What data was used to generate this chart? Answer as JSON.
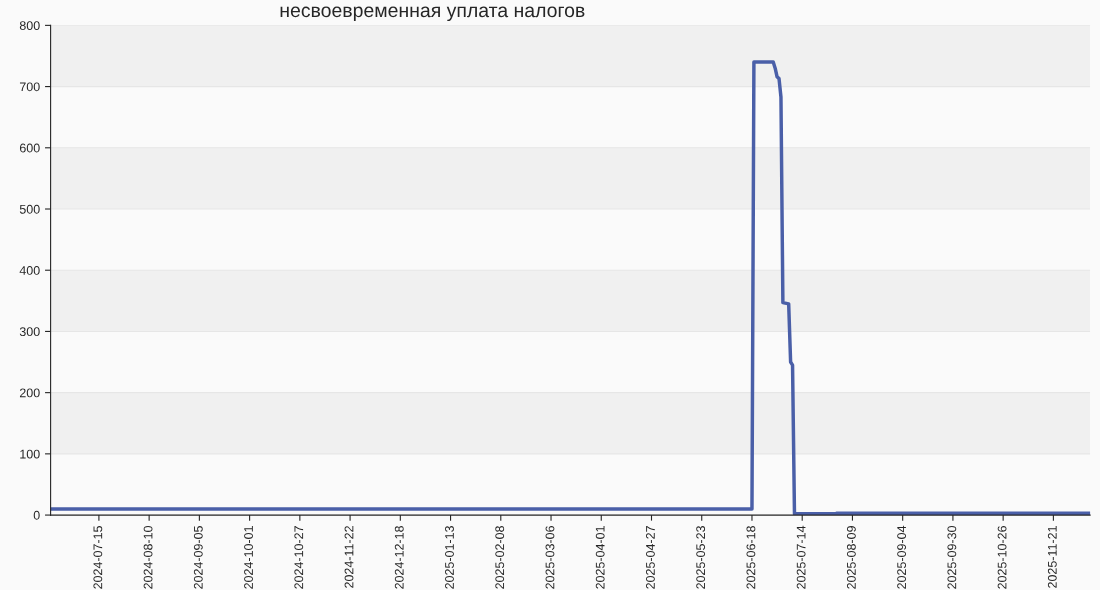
{
  "chart_data": {
    "type": "line",
    "title": "несвоевременная уплата налогов",
    "x": [
      "2024-06-20",
      "2025-06-18",
      "2025-06-19",
      "2025-06-29",
      "2025-06-30",
      "2025-07-01",
      "2025-07-02",
      "2025-07-03",
      "2025-07-04",
      "2025-07-07",
      "2025-07-08",
      "2025-07-09",
      "2025-07-10",
      "2025-07-31",
      "2025-08-01",
      "2025-12-10"
    ],
    "series": [
      {
        "color": "#4a5fa8",
        "values": [
          10,
          10,
          740,
          740,
          730,
          716,
          713,
          683,
          347,
          345,
          250,
          245,
          2,
          2,
          3,
          3
        ]
      }
    ],
    "xlim": [
      "2024-06-20",
      "2025-12-10"
    ],
    "xticks": [
      "2024-07-15",
      "2024-08-10",
      "2024-09-05",
      "2024-10-01",
      "2024-10-27",
      "2024-11-22",
      "2024-12-18",
      "2025-01-13",
      "2025-02-08",
      "2025-03-06",
      "2025-04-01",
      "2025-04-27",
      "2025-05-23",
      "2025-06-18",
      "2025-07-14",
      "2025-08-09",
      "2025-09-04",
      "2025-09-30",
      "2025-10-26",
      "2025-11-21"
    ],
    "ylim": [
      0,
      800
    ],
    "yticks": [
      0,
      100,
      200,
      300,
      400,
      500,
      600,
      700,
      800
    ],
    "grid": "y",
    "legend": false,
    "marker": "none",
    "line_style": "solid"
  }
}
